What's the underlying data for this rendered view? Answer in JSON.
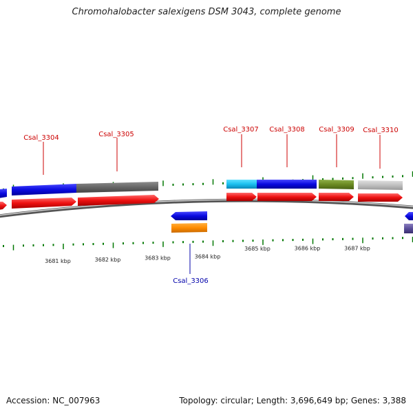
{
  "title": "Chromohalobacter salexigens DSM 3043, complete genome",
  "footer": {
    "accession": "Accession: NC_007963",
    "summary": "Topology: circular; Length: 3,696,649 bp; Genes: 3,388"
  },
  "colors": {
    "label_upper": "#cc0000",
    "label_lower": "#0000aa",
    "tick": "#007700",
    "backbone": "#777777",
    "cds": "#ee1111"
  },
  "scale": {
    "unit": "kbp",
    "labels": [
      {
        "kbp": 3681,
        "text": "3681 kbp"
      },
      {
        "kbp": 3682,
        "text": "3682 kbp"
      },
      {
        "kbp": 3683,
        "text": "3683 kbp"
      },
      {
        "kbp": 3684,
        "text": "3684 kbp"
      },
      {
        "kbp": 3685,
        "text": "3685 kbp"
      },
      {
        "kbp": 3686,
        "text": "3686 kbp"
      },
      {
        "kbp": 3687,
        "text": "3687 kbp"
      }
    ]
  },
  "genes": [
    {
      "label": "Csal_3304",
      "strand": "+"
    },
    {
      "label": "Csal_3305",
      "strand": "+"
    },
    {
      "label": "Csal_3306",
      "strand": "-"
    },
    {
      "label": "Csal_3307",
      "strand": "+"
    },
    {
      "label": "Csal_3308",
      "strand": "+"
    },
    {
      "label": "Csal_3309",
      "strand": "+"
    },
    {
      "label": "Csal_3310",
      "strand": "+"
    }
  ]
}
